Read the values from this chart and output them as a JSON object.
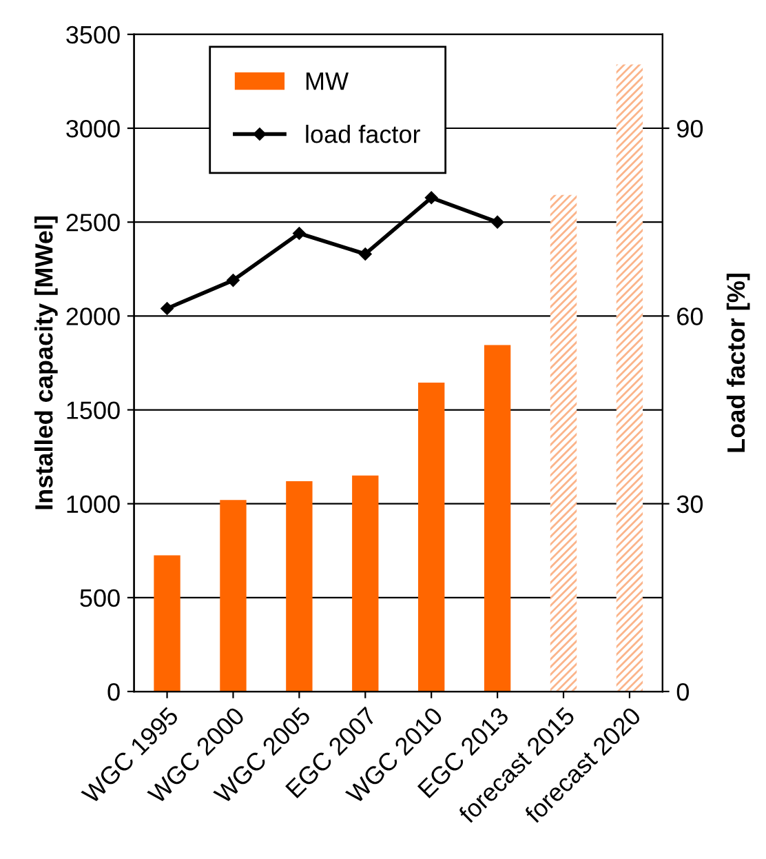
{
  "chart_data": {
    "type": "bar",
    "ylabel": "Installed capacity [MWel]",
    "y2label": "Load factor [%]",
    "categories": [
      "WGC 1995",
      "WGC 2000",
      "WGC 2005",
      "EGC 2007",
      "WGC 2010",
      "EGC 2013",
      "forecast 2015",
      "forecast 2020"
    ],
    "series": [
      {
        "name": "MW",
        "color": "#ff6600",
        "values": [
          725,
          1020,
          1120,
          1150,
          1645,
          1845,
          null,
          null
        ]
      },
      {
        "color": "#fbb48a",
        "values": [
          null,
          null,
          null,
          null,
          null,
          null,
          2645,
          3340
        ]
      },
      {
        "name": "load factor",
        "type": "line",
        "axis": "y2",
        "color": "#000000",
        "marker": "diamond",
        "values": [
          61.2,
          65.7,
          73.2,
          69.9,
          78.9,
          75.0,
          null,
          null
        ]
      }
    ],
    "ylim": [
      0,
      3500
    ],
    "yticks": [
      0,
      500,
      1000,
      1500,
      2000,
      2500,
      3000,
      3500
    ],
    "y2lim": [
      0,
      105
    ],
    "y2ticks": [
      0,
      30,
      60,
      90
    ],
    "grid": "y",
    "legend": "top left"
  }
}
